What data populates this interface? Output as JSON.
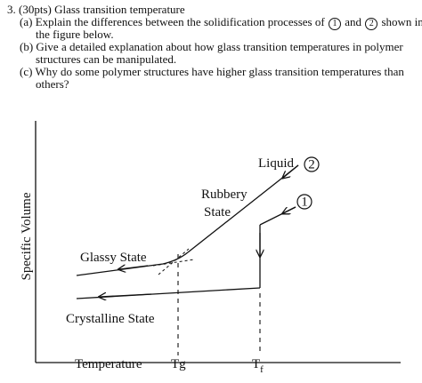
{
  "question": {
    "number": "3.",
    "points": "(30pts)",
    "title": "Glass transition temperature",
    "part_a": {
      "label": "(a)",
      "line1_before": "Explain the differences between the solidification processes of",
      "marker1": "1",
      "connector": "and",
      "marker2": "2",
      "line1_after": "shown in",
      "line2": "the figure below."
    },
    "part_b": {
      "label": "(b)",
      "line1": "Give a detailed explanation about how glass transition temperatures in polymer",
      "line2": "structures can be manipulated."
    },
    "part_c": {
      "label": "(c)",
      "line1": "Why do some polymer structures have higher glass transition temperatures than",
      "line2": "others?"
    }
  },
  "figure": {
    "y_axis_label": "Specific Volume",
    "x_axis_label": "Temperature",
    "tick_tg": "Tg",
    "tick_tf_main": "T",
    "tick_tf_sub": "f",
    "label_liquid": "Liquid",
    "label_rubbery_line1": "Rubbery",
    "label_rubbery_line2": "State",
    "label_glassy": "Glassy State",
    "label_crystalline": "Crystalline State",
    "marker1": "1",
    "marker2": "2",
    "line_color": "#111111"
  }
}
